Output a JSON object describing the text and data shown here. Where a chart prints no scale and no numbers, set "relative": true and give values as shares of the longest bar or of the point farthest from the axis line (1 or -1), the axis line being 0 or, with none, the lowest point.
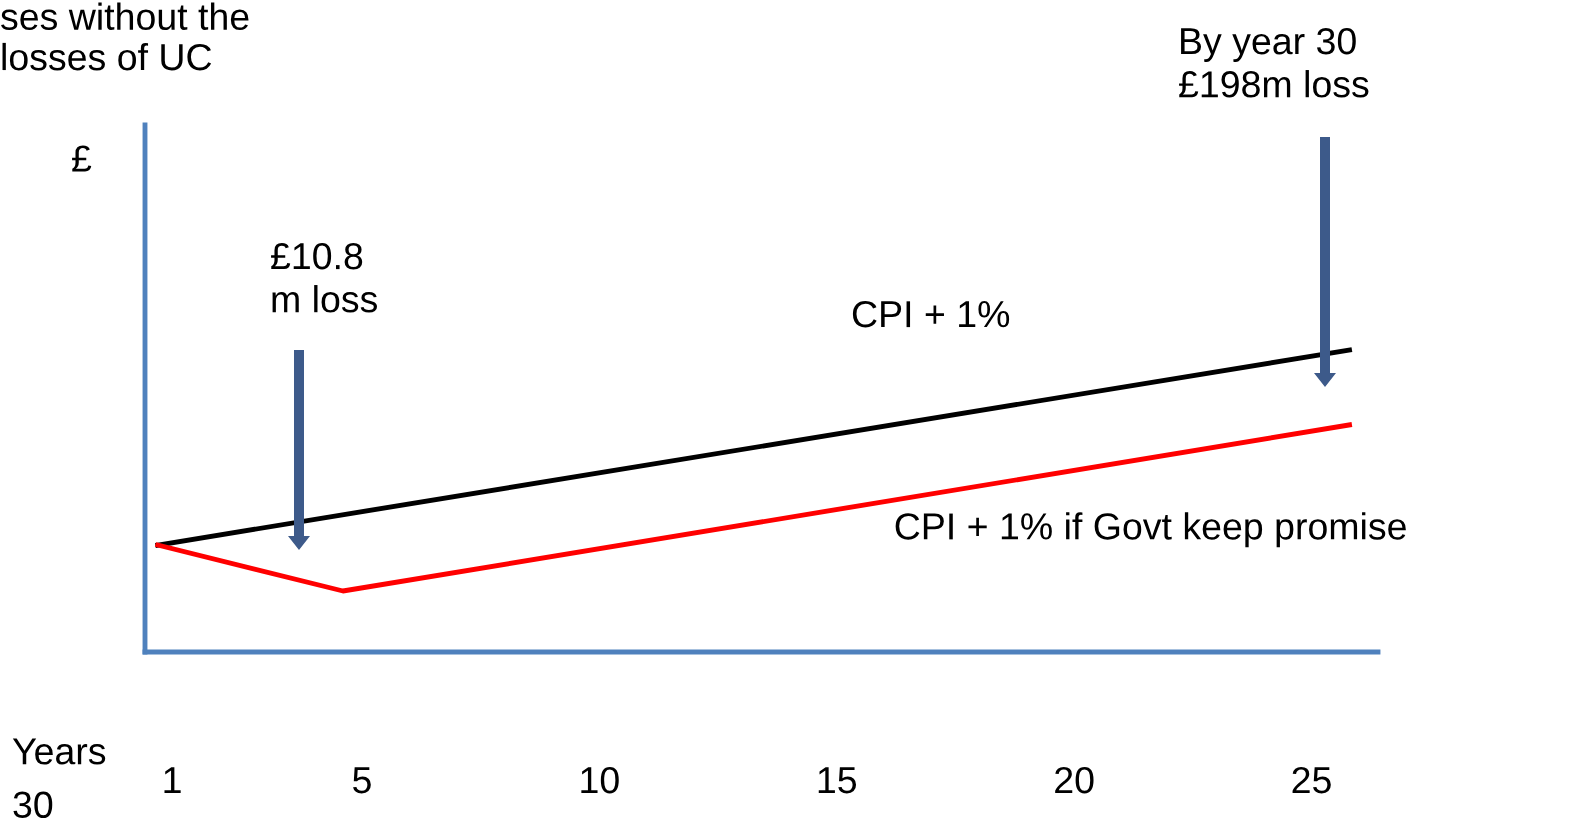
{
  "chart_data": {
    "type": "line",
    "relative": true,
    "title": "ses without the\nlosses of UC",
    "ylabel": "£",
    "xlabel": "Years",
    "xlim": [
      0.43,
      26.4
    ],
    "xticks": [
      1,
      5,
      10,
      15,
      20,
      25
    ],
    "series": [
      {
        "name": "CPI + 1%",
        "color": "#000000",
        "x": [
          0.7,
          25.8
        ],
        "values": [
          0.354,
          1.0
        ]
      },
      {
        "name": "CPI + 1% if Govt keep promise",
        "color": "#ff0000",
        "x": [
          0.7,
          4.6,
          25.8
        ],
        "values": [
          0.354,
          0.202,
          0.752
        ]
      }
    ],
    "annotations": [
      "£10.8\nm loss",
      "By year 30\n£198m loss",
      "30"
    ],
    "legend": false,
    "marker": "none",
    "line_style": "solid"
  }
}
